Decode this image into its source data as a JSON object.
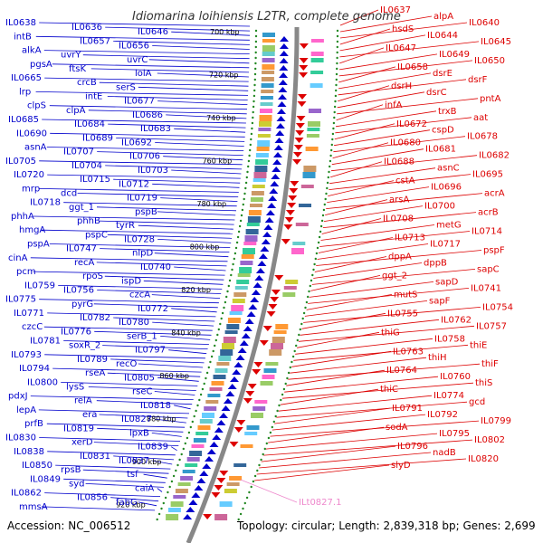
{
  "title": "Idiomarina loihiensis L2TR, complete genome",
  "footer": {
    "accession": "Accession: NC_006512",
    "topology": "Topology: circular; Length: 2,839,318 bp; Genes: 2,699"
  },
  "colors": {
    "forward_strand": "#0000cc",
    "reverse_strand": "#dd0000",
    "rna_gene": "#ee88cc",
    "backbone": "#888888",
    "tick_dots": "#228822"
  },
  "scale_labels": [
    "700 kbp",
    "720 kbp",
    "740 kbp",
    "760 kbp",
    "780 kbp",
    "800 kbp",
    "820 kbp",
    "840 kbp",
    "860 kbp",
    "880 kbp",
    "900 kbp",
    "920 kbp"
  ],
  "forward_genes": [
    "IL0638",
    "IL0636",
    "IL0646",
    "intB",
    "IL0657",
    "IL0656",
    "alkA",
    "uvrY",
    "uvrC",
    "pgsA",
    "ftsK",
    "lolA",
    "IL0665",
    "crcB",
    "serS",
    "lrp",
    "intE",
    "IL0677",
    "clpS",
    "clpA",
    "IL0686",
    "IL0685",
    "IL0684",
    "IL0683",
    "IL0690",
    "IL0689",
    "IL0692",
    "asnA",
    "IL0707",
    "IL0706",
    "IL0705",
    "IL0704",
    "IL0703",
    "IL0720",
    "IL0715",
    "IL0712",
    "mrp",
    "dcd",
    "IL0719",
    "IL0718",
    "ggt_1",
    "pspB",
    "phhA",
    "phhB",
    "tyrR",
    "hmgA",
    "pspC",
    "IL0728",
    "pspA",
    "IL0747",
    "nlpD",
    "cinA",
    "recA",
    "IL0740",
    "pcm",
    "rpoS",
    "ispD",
    "IL0759",
    "IL0756",
    "czcA",
    "IL0775",
    "pyrG",
    "IL0772",
    "IL0771",
    "IL0782",
    "IL0780",
    "czcC",
    "IL0776",
    "serB_1",
    "IL0781",
    "soxR_2",
    "IL0797",
    "IL0793",
    "IL0789",
    "recO",
    "IL0794",
    "rseA",
    "IL0805",
    "IL0800",
    "lysS",
    "rseC",
    "pdxJ",
    "relA",
    "IL0818",
    "lepA",
    "era",
    "IL0827",
    "prfB",
    "IL0819",
    "lpxB",
    "IL0830",
    "xerD",
    "IL0839",
    "IL0838",
    "IL0831",
    "IL0837",
    "IL0850",
    "rpsB",
    "tsf",
    "IL0849",
    "syd",
    "caiA",
    "IL0862",
    "IL0856",
    "fabG",
    "mmsA"
  ],
  "reverse_genes": [
    "IL0637",
    "alpA",
    "IL0640",
    "hsdS",
    "IL0644",
    "IL0645",
    "IL0647",
    "IL0649",
    "IL0650",
    "IL0658",
    "dsrE",
    "dsrF",
    "dsrH",
    "dsrC",
    "pntA",
    "infA",
    "trxB",
    "aat",
    "IL0672",
    "cspD",
    "IL0678",
    "IL0680",
    "IL0681",
    "IL0682",
    "IL0688",
    "asnC",
    "IL0695",
    "cstA",
    "IL0696",
    "acrA",
    "arsA",
    "IL0700",
    "acrB",
    "IL0708",
    "metG",
    "IL0714",
    "IL0713",
    "IL0717",
    "pspF",
    "dppA",
    "dppB",
    "sapC",
    "ggt_2",
    "sapD",
    "IL0741",
    "mutS",
    "sapF",
    "IL0754",
    "IL0755",
    "IL0762",
    "IL0757",
    "thiG",
    "IL0758",
    "thiE",
    "IL0763",
    "thiH",
    "thiF",
    "IL0764",
    "IL0760",
    "thiS",
    "thiC",
    "IL0774",
    "gcd",
    "IL0791",
    "IL0792",
    "IL0799",
    "sodA",
    "IL0795",
    "IL0802",
    "IL0796",
    "nadB",
    "IL0820",
    "slyD"
  ],
  "rna_genes": [
    "ILt0827.1"
  ]
}
